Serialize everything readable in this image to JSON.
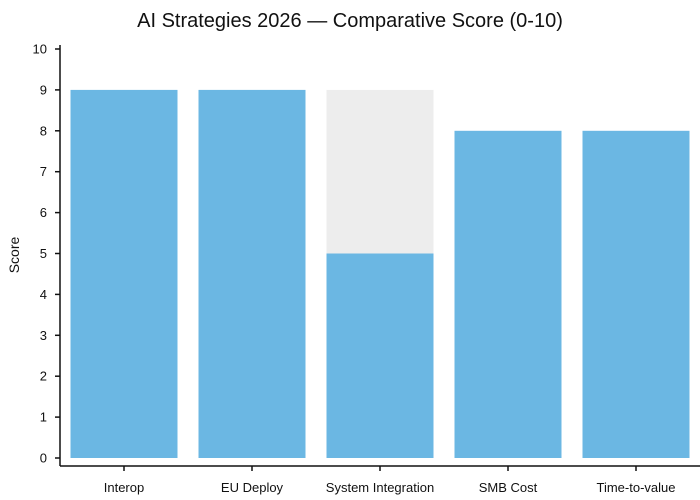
{
  "chart_data": {
    "type": "bar",
    "title": "AI Strategies 2026 — Comparative Score (0-10)",
    "xlabel": "",
    "ylabel": "Score",
    "ylim": [
      0,
      10
    ],
    "yticks": [
      0,
      1,
      2,
      3,
      4,
      5,
      6,
      7,
      8,
      9,
      10
    ],
    "categories": [
      "Interop",
      "EU Deploy",
      "System Integration",
      "SMB Cost",
      "Time-to-value"
    ],
    "values": [
      9,
      9,
      5,
      8,
      8
    ],
    "background_values": [
      null,
      null,
      9,
      null,
      null
    ],
    "grid": false,
    "legend": "none",
    "colors": {
      "bar": "#6bb7e3",
      "background_bar": "#ededed",
      "axis": "#111111"
    }
  }
}
